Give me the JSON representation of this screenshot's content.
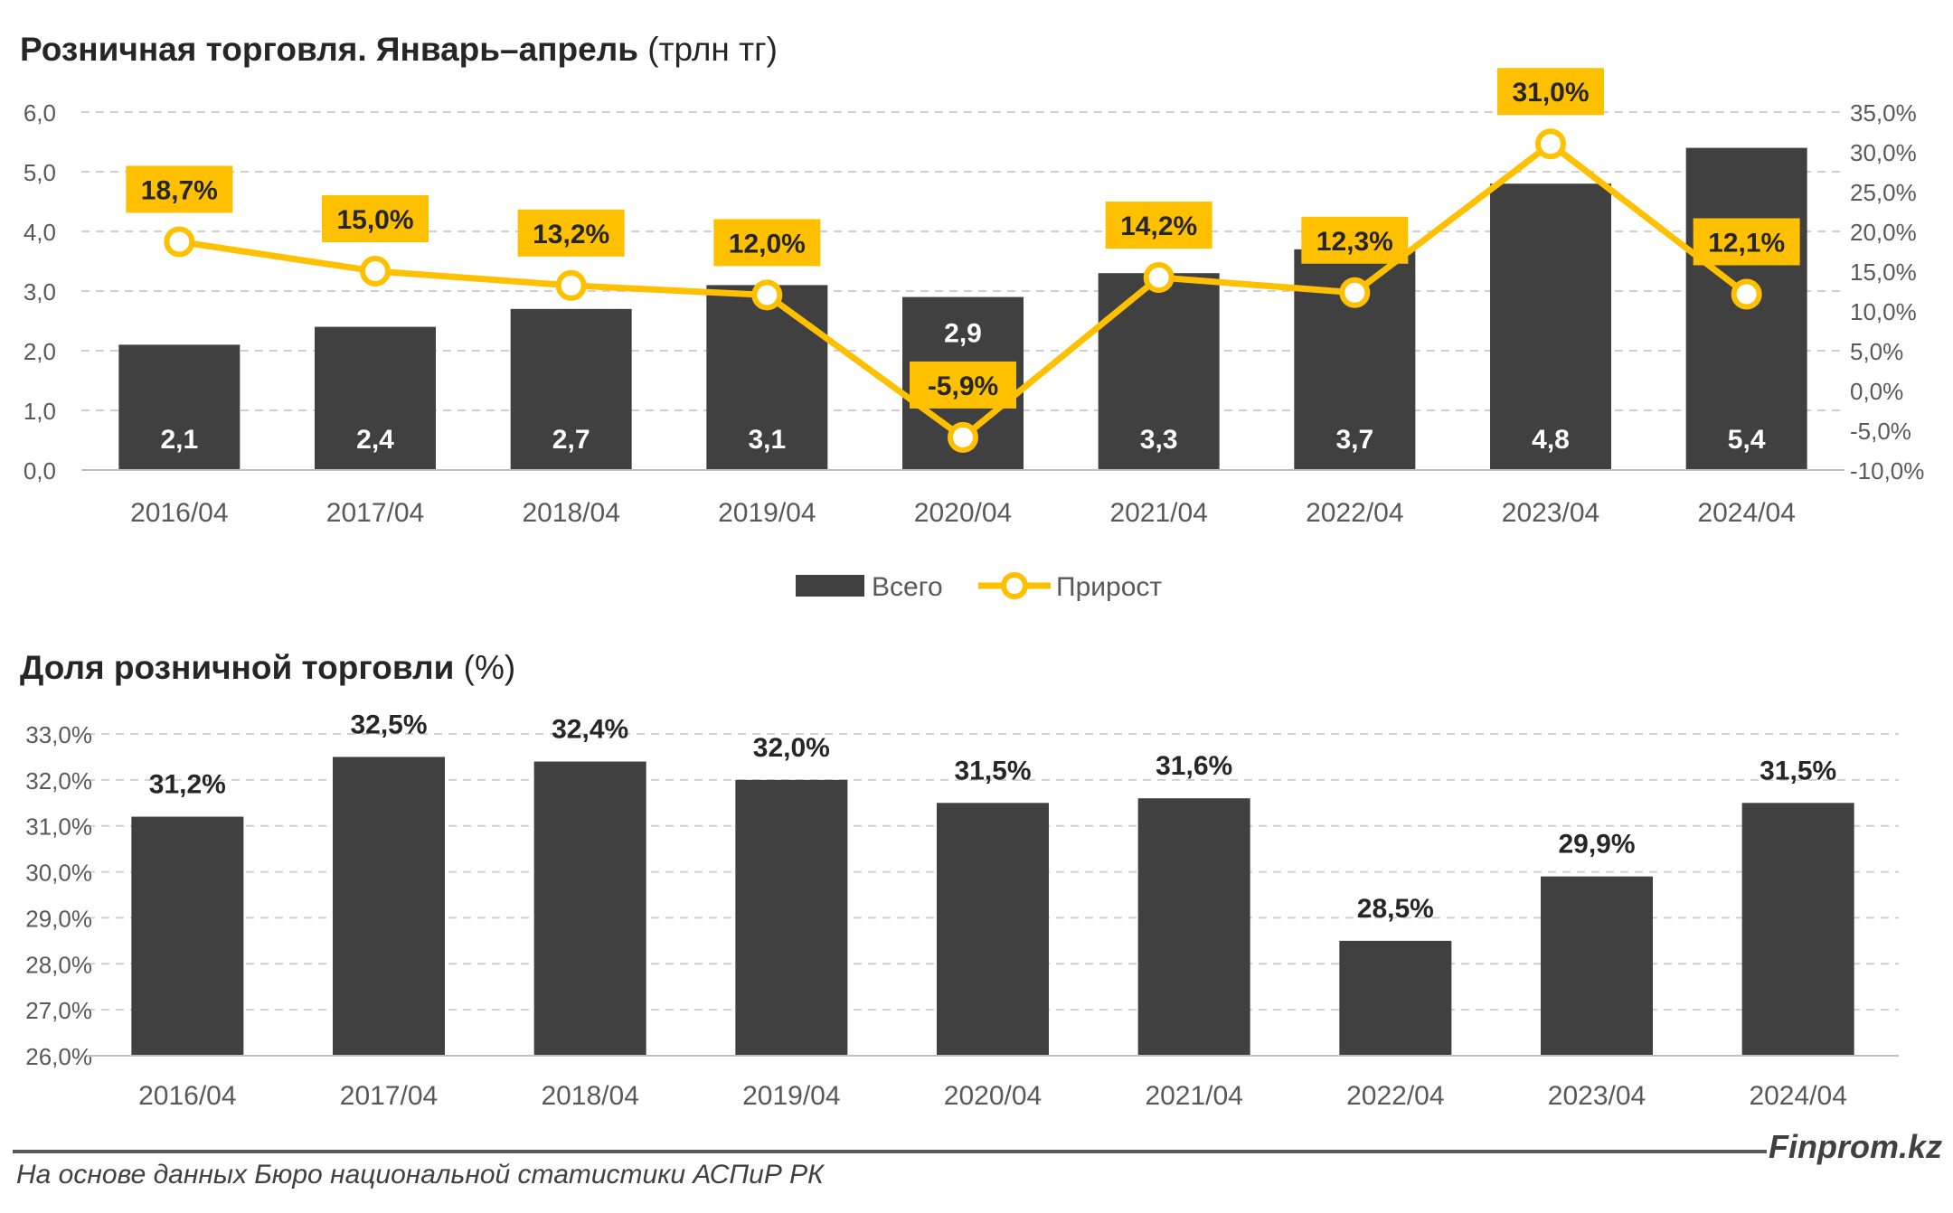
{
  "chart_data": [
    {
      "type": "bar",
      "title": "Розничная торговля. Январь–апрель",
      "unit": "(трлн тг)",
      "categories": [
        "2016/04",
        "2017/04",
        "2018/04",
        "2019/04",
        "2020/04",
        "2021/04",
        "2022/04",
        "2023/04",
        "2024/04"
      ],
      "series": [
        {
          "name": "Всего",
          "type": "bar",
          "axis": "left",
          "color": "#404040",
          "values": [
            2.1,
            2.4,
            2.7,
            3.1,
            2.9,
            3.3,
            3.7,
            4.8,
            5.4
          ],
          "labels": [
            "2,1",
            "2,4",
            "2,7",
            "3,1",
            "2,9",
            "3,3",
            "3,7",
            "4,8",
            "5,4"
          ]
        },
        {
          "name": "Прирост",
          "type": "line",
          "axis": "right",
          "color": "#FFC000",
          "values": [
            18.7,
            15.0,
            13.2,
            12.0,
            -5.9,
            14.2,
            12.3,
            31.0,
            12.1
          ],
          "labels": [
            "18,7%",
            "15,0%",
            "13,2%",
            "12,0%",
            "-5,9%",
            "14,2%",
            "12,3%",
            "31,0%",
            "12,1%"
          ]
        }
      ],
      "ylim": [
        0,
        6
      ],
      "yticks": [
        "0,0",
        "1,0",
        "2,0",
        "3,0",
        "4,0",
        "5,0",
        "6,0"
      ],
      "y2lim": [
        -10,
        35
      ],
      "y2ticks": [
        "-10,0%",
        "-5,0%",
        "0,0%",
        "5,0%",
        "10,0%",
        "15,0%",
        "20,0%",
        "25,0%",
        "30,0%",
        "35,0%"
      ],
      "grid": true,
      "legend": "bottom"
    },
    {
      "type": "bar",
      "title": "Доля розничной торговли",
      "unit": "(%)",
      "categories": [
        "2016/04",
        "2017/04",
        "2018/04",
        "2019/04",
        "2020/04",
        "2021/04",
        "2022/04",
        "2023/04",
        "2024/04"
      ],
      "series": [
        {
          "color": "#404040",
          "values": [
            31.2,
            32.5,
            32.4,
            32.0,
            31.5,
            31.6,
            28.5,
            29.9,
            31.5
          ],
          "labels": [
            "31,2%",
            "32,5%",
            "32,4%",
            "32,0%",
            "31,5%",
            "31,6%",
            "28,5%",
            "29,9%",
            "31,5%"
          ]
        }
      ],
      "ylim": [
        26,
        33
      ],
      "yticks": [
        "26,0%",
        "27,0%",
        "28,0%",
        "29,0%",
        "30,0%",
        "31,0%",
        "32,0%",
        "33,0%"
      ],
      "grid": true
    }
  ],
  "footer": {
    "brand": "Finprom.kz",
    "source": "На основе данных Бюро национальной статистики АСПиР РК"
  }
}
